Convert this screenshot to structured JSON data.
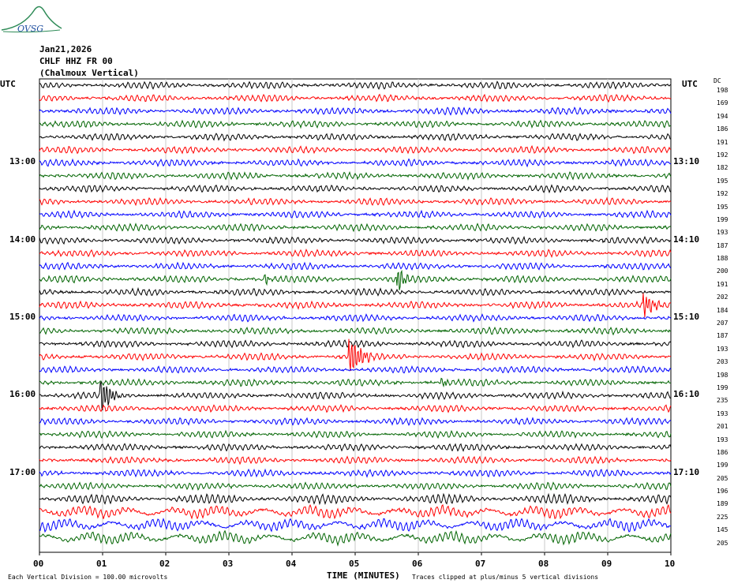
{
  "logo": {
    "text": "OVSG"
  },
  "header": {
    "date": "Jan21,2026",
    "station": "CHLF HHZ FR 00",
    "location": "(Chalmoux Vertical)"
  },
  "utc_left": "UTC",
  "utc_right": "UTC",
  "dc_label": "DC",
  "left_hour_labels": [
    "13:00",
    "14:00",
    "15:00",
    "16:00",
    "17:00"
  ],
  "right_hour_labels": [
    "13:10",
    "14:10",
    "15:10",
    "16:10",
    "17:10"
  ],
  "footer": {
    "left": "Each Vertical Division =  100.00 microvolts",
    "center": "TIME (MINUTES)",
    "right": "Traces clipped at plus/minus 5 vertical divisions"
  },
  "colors": {
    "trace_cycle": [
      "#000000",
      "#ff0000",
      "#0000ff",
      "#006400"
    ],
    "grid": "#c8c8c8"
  },
  "chart_data": {
    "type": "line",
    "title": "CHLF HHZ FR 00 (Chalmoux Vertical)",
    "xlabel": "TIME (MINUTES)",
    "x_ticks": [
      "00",
      "01",
      "02",
      "03",
      "04",
      "05",
      "06",
      "07",
      "08",
      "09",
      "10"
    ],
    "xlim": [
      0,
      10
    ],
    "dc_offsets": [
      198,
      169,
      194,
      186,
      191,
      192,
      182,
      195,
      192,
      195,
      199,
      193,
      187,
      188,
      200,
      191,
      202,
      184,
      207,
      187,
      193,
      203,
      198,
      199,
      235,
      193,
      201,
      193,
      186,
      199,
      205,
      196,
      189,
      225,
      145,
      205
    ],
    "events": [
      {
        "trace": 15,
        "minute": 5.7,
        "amp": 1.6,
        "dur": 0.18
      },
      {
        "trace": 15,
        "minute": 3.6,
        "amp": 0.7,
        "dur": 0.1
      },
      {
        "trace": 17,
        "minute": 9.6,
        "amp": 1.4,
        "dur": 0.3
      },
      {
        "trace": 21,
        "minute": 4.95,
        "amp": 2.4,
        "dur": 0.35
      },
      {
        "trace": 23,
        "minute": 6.4,
        "amp": 0.6,
        "dur": 0.12
      },
      {
        "trace": 24,
        "minute": 1.0,
        "amp": 2.2,
        "dur": 0.3
      }
    ]
  }
}
